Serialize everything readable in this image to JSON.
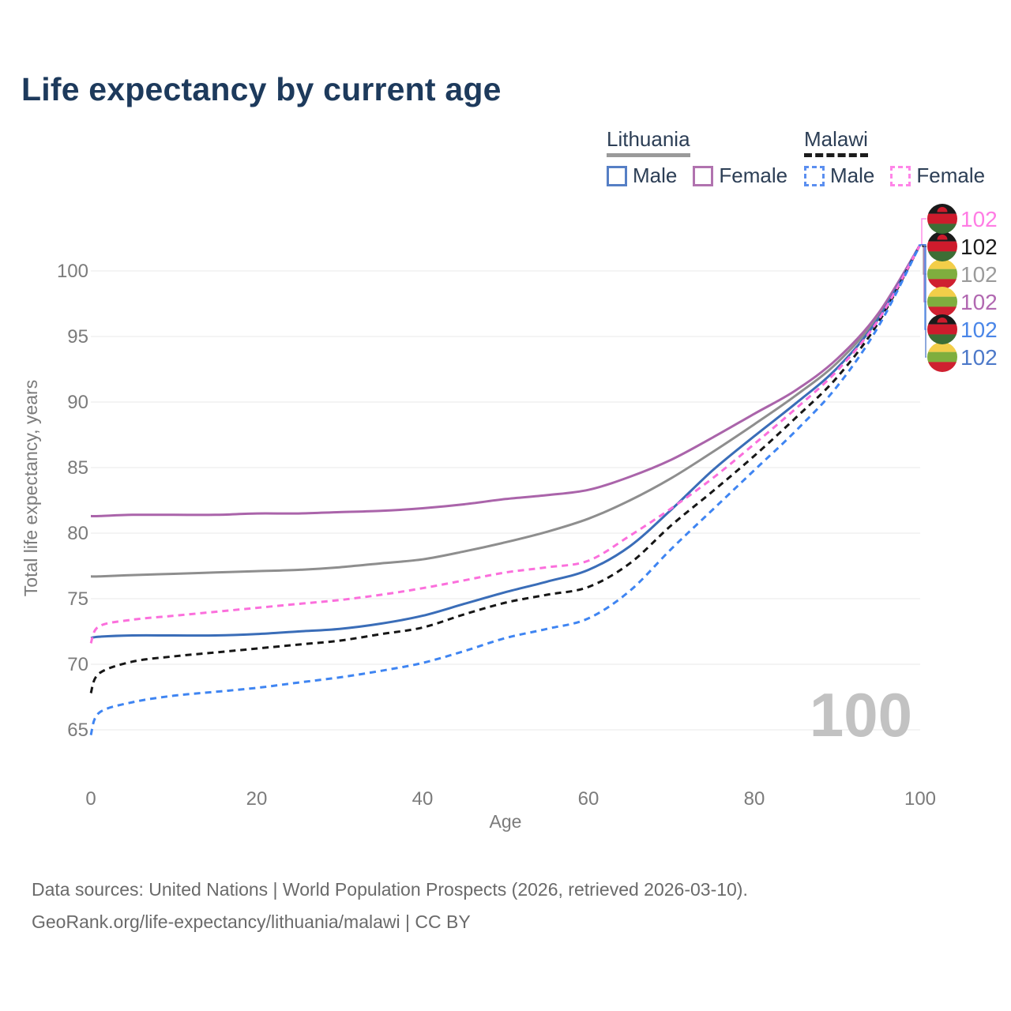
{
  "title": "Life expectancy by current age",
  "watermark_age": "100",
  "legend": {
    "groups": [
      {
        "label": "Lithuania",
        "line_style": "solid",
        "underline_color": "#9a9a9a",
        "items": [
          {
            "label": "Male",
            "color": "#567fc5",
            "dashed": false
          },
          {
            "label": "Female",
            "color": "#b173af",
            "dashed": false
          }
        ]
      },
      {
        "label": "Malawi",
        "line_style": "dashed",
        "underline_color": "#1c1c1c",
        "items": [
          {
            "label": "Male",
            "color": "#5b8ff0",
            "dashed": true
          },
          {
            "label": "Female",
            "color": "#ff85e8",
            "dashed": true
          }
        ]
      }
    ]
  },
  "footer": {
    "line1": "Data sources: United Nations | World Population Prospects (2026, retrieved 2026-03-10).",
    "line2": "GeoRank.org/life-expectancy/lithuania/malawi | CC BY"
  },
  "chart_data": {
    "type": "line",
    "title": "Life expectancy by current age",
    "xlabel": "Age",
    "ylabel": "Total life expectancy, years",
    "x_ticks": [
      0,
      20,
      40,
      60,
      80,
      100
    ],
    "y_ticks": [
      65,
      70,
      75,
      80,
      85,
      90,
      95,
      100
    ],
    "xlim": [
      0,
      100
    ],
    "ylim": [
      64,
      103
    ],
    "grid": "horizontal",
    "legend_position": "top-right",
    "x": [
      0,
      1,
      5,
      10,
      15,
      20,
      25,
      30,
      35,
      40,
      45,
      50,
      55,
      60,
      65,
      70,
      75,
      80,
      85,
      90,
      95,
      100
    ],
    "series": [
      {
        "name": "Lithuania Both sexes",
        "country": "Lithuania",
        "sex": "Both",
        "line": "solid",
        "color": "#8e8e8e",
        "flag": "lithuania",
        "label_row": 2,
        "end_label": "102",
        "end_label_color": "#9b9b9b",
        "values": [
          76.7,
          76.7,
          76.8,
          76.9,
          77.0,
          77.1,
          77.2,
          77.4,
          77.7,
          78.0,
          78.6,
          79.3,
          80.1,
          81.1,
          82.5,
          84.2,
          86.2,
          88.3,
          90.5,
          93.0,
          96.6,
          102
        ]
      },
      {
        "name": "Lithuania Female",
        "country": "Lithuania",
        "sex": "Female",
        "line": "solid",
        "color": "#aa64aa",
        "flag": "lithuania",
        "label_row": 3,
        "end_label": "102",
        "end_label_color": "#b168b1",
        "values": [
          81.3,
          81.3,
          81.4,
          81.4,
          81.4,
          81.5,
          81.5,
          81.6,
          81.7,
          81.9,
          82.2,
          82.6,
          82.9,
          83.3,
          84.3,
          85.6,
          87.3,
          89.1,
          90.9,
          93.3,
          96.8,
          102
        ]
      },
      {
        "name": "Lithuania Male",
        "country": "Lithuania",
        "sex": "Male",
        "line": "solid",
        "color": "#3a6db8",
        "flag": "lithuania",
        "label_row": 5,
        "end_label": "102",
        "end_label_color": "#4d79c9",
        "values": [
          72.0,
          72.1,
          72.2,
          72.2,
          72.2,
          72.3,
          72.5,
          72.7,
          73.1,
          73.7,
          74.6,
          75.5,
          76.3,
          77.2,
          79.0,
          81.8,
          84.8,
          87.4,
          89.9,
          92.6,
          96.4,
          102
        ]
      },
      {
        "name": "Malawi Both sexes",
        "country": "Malawi",
        "sex": "Both",
        "line": "dashed",
        "color": "#161616",
        "flag": "malawi",
        "label_row": 1,
        "end_label": "102",
        "end_label_color": "#1c1c1c",
        "values": [
          67.8,
          69.3,
          70.2,
          70.6,
          70.9,
          71.2,
          71.5,
          71.8,
          72.3,
          72.8,
          73.8,
          74.7,
          75.3,
          75.9,
          77.7,
          80.6,
          83.2,
          85.9,
          88.8,
          91.9,
          96.1,
          102
        ]
      },
      {
        "name": "Malawi Female",
        "country": "Malawi",
        "sex": "Female",
        "line": "dashed",
        "color": "#fb6fdc",
        "flag": "malawi",
        "label_row": 0,
        "end_label": "102",
        "end_label_color": "#ff7ce4",
        "values": [
          71.6,
          72.9,
          73.4,
          73.7,
          74.0,
          74.3,
          74.6,
          74.9,
          75.3,
          75.8,
          76.4,
          77.0,
          77.4,
          77.9,
          79.8,
          81.9,
          84.2,
          86.8,
          89.5,
          92.4,
          96.3,
          102
        ]
      },
      {
        "name": "Malawi Male",
        "country": "Malawi",
        "sex": "Male",
        "line": "dashed",
        "color": "#3f85f2",
        "flag": "malawi",
        "label_row": 4,
        "end_label": "102",
        "end_label_color": "#4a86e8",
        "values": [
          64.6,
          66.3,
          67.1,
          67.6,
          67.9,
          68.2,
          68.6,
          69.0,
          69.5,
          70.1,
          71.0,
          72.0,
          72.7,
          73.5,
          75.6,
          78.8,
          81.8,
          84.8,
          87.8,
          91.2,
          95.8,
          102
        ]
      }
    ]
  }
}
